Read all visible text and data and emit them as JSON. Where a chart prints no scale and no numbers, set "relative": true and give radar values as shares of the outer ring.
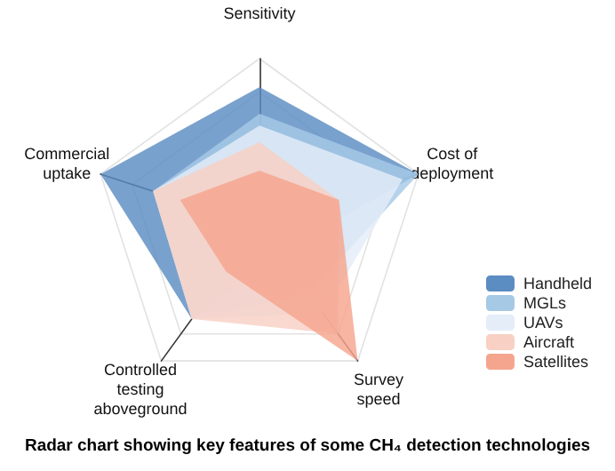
{
  "chart_data": {
    "type": "radar",
    "title": "Radar chart showing key features of some CH₄ detection technologies",
    "relative": true,
    "categories": [
      "Sensitivity",
      "Cost of deployment",
      "Survey speed",
      "Controlled testing aboveground",
      "Commercial uptake"
    ],
    "legend": "right",
    "series": [
      {
        "name": "Handheld",
        "color": "#5b8cc2",
        "values": [
          0.83,
          1,
          0.2,
          0.69,
          1
        ]
      },
      {
        "name": "MGLs",
        "color": "#a6c9e6",
        "values": [
          0.67,
          1,
          0.5,
          0.69,
          0.67
        ]
      },
      {
        "name": "UAVs",
        "color": "#e4edf8",
        "values": [
          0.6,
          0.9,
          0.65,
          0.69,
          0.67
        ]
      },
      {
        "name": "Aircraft",
        "color": "#f8d0c4",
        "values": [
          0.5,
          0.5,
          0.8,
          0.69,
          0.67
        ]
      },
      {
        "name": "Satellites",
        "color": "#f5a58d",
        "values": [
          0.33,
          0.5,
          1,
          0.34,
          0.5
        ]
      }
    ]
  }
}
